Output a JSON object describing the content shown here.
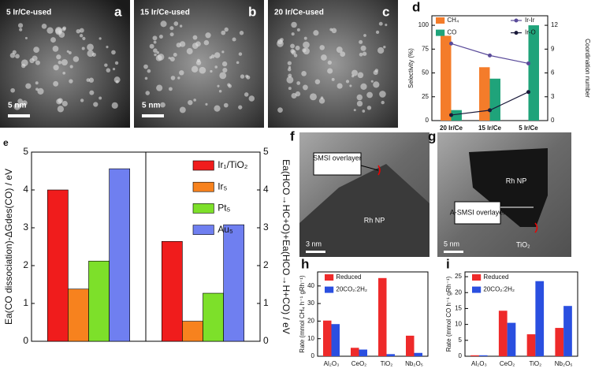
{
  "images": [
    {
      "label": "a",
      "caption": "5 Ir/Ce-used",
      "scale": "5 nm"
    },
    {
      "label": "b",
      "caption": "15 Ir/Ce-used",
      "scale": "5 nm"
    },
    {
      "label": "c",
      "caption": "20 Ir/Ce-used",
      "scale": ""
    },
    {
      "label": "f",
      "texts": [
        "SMSI overlayer",
        "Rh NP"
      ],
      "scale": "3 nm"
    },
    {
      "label": "g",
      "texts": [
        "Rh NP",
        "A-SMSI overlayer",
        "TiO₂"
      ],
      "scale": "5 nm"
    }
  ],
  "chart_data": [
    {
      "type": "bar",
      "label": "d",
      "categories": [
        "20 Ir/Ce",
        "15 Ir/Ce",
        "5 Ir/Ce"
      ],
      "series": [
        {
          "name": "CH₄",
          "color": "#f47c2a",
          "values": [
            89,
            56,
            0
          ]
        },
        {
          "name": "CO",
          "color": "#1fa37a",
          "values": [
            11,
            44,
            100
          ]
        },
        {
          "name": "Ir-Ir",
          "color": "#5a4b9a",
          "axis": "y2",
          "kind": "line",
          "values": [
            9.7,
            8.2,
            7.2
          ]
        },
        {
          "name": "Ir-O",
          "color": "#1a1a3a",
          "axis": "y2",
          "kind": "line",
          "values": [
            0.7,
            1.3,
            3.6
          ]
        }
      ],
      "ylabel": "Selectivity (%)",
      "y2label": "Coordination number",
      "ylim": [
        0,
        110
      ],
      "yticks": [
        0,
        25,
        50,
        75,
        100
      ],
      "y2lim": [
        0,
        13.2
      ],
      "y2ticks": [
        0,
        3,
        6,
        9,
        12
      ]
    },
    {
      "type": "bar",
      "label": "e",
      "categories": [
        null,
        null
      ],
      "series": [
        {
          "name": "Ir₁/TiO₂",
          "color": "#f01c1c",
          "values": [
            4.0,
            2.64
          ]
        },
        {
          "name": "Ir₅",
          "color": "#f7821e",
          "values": [
            1.38,
            0.53
          ]
        },
        {
          "name": "Pt₅",
          "color": "#7de02a",
          "values": [
            2.12,
            1.27
          ]
        },
        {
          "name": "Au₅",
          "color": "#6f7ff0",
          "values": [
            4.56,
            3.08
          ]
        }
      ],
      "ylabel": "Ea(CO dissociation)-ΔGdes(CO) / eV",
      "y2label": "Ea(HCO→HC+O)+Ea(HCO→H+CO) / eV",
      "ylim": [
        0,
        5
      ],
      "yticks": [
        0,
        1,
        2,
        3,
        4,
        5
      ],
      "y2lim": [
        0,
        5
      ],
      "y2ticks": [
        0,
        1,
        2,
        3,
        4,
        5
      ]
    },
    {
      "type": "bar",
      "label": "h",
      "categories": [
        "Al₂O₃",
        "CeO₂",
        "TiO₂",
        "Nb₂O₅"
      ],
      "series": [
        {
          "name": "Reduced",
          "color": "#ee2a2a",
          "values": [
            20.3,
            4.8,
            44.5,
            11.7
          ]
        },
        {
          "name": "20CO₂:2H₂",
          "color": "#2a4fe0",
          "values": [
            18.3,
            3.8,
            1.2,
            1.9
          ]
        }
      ],
      "ylabel": "Rate (mmol CH₄ h⁻¹ gRh⁻¹)",
      "ylim": [
        0,
        48
      ],
      "yticks": [
        0,
        10,
        20,
        30,
        40
      ]
    },
    {
      "type": "bar",
      "label": "i",
      "categories": [
        "Al₂O₃",
        "CeO₂",
        "TiO₂",
        "Nb₂O₅"
      ],
      "series": [
        {
          "name": "Reduced",
          "color": "#ee2a2a",
          "values": [
            0.3,
            14.3,
            6.9,
            8.9
          ]
        },
        {
          "name": "20CO₂:2H₂",
          "color": "#2a4fe0",
          "values": [
            0.3,
            10.5,
            23.6,
            15.8
          ]
        }
      ],
      "ylabel": "Rate (mmol CO h⁻¹ gRh⁻¹)",
      "ylim": [
        0,
        26.5
      ],
      "yticks": [
        0,
        5,
        10,
        15,
        20,
        25
      ]
    }
  ]
}
